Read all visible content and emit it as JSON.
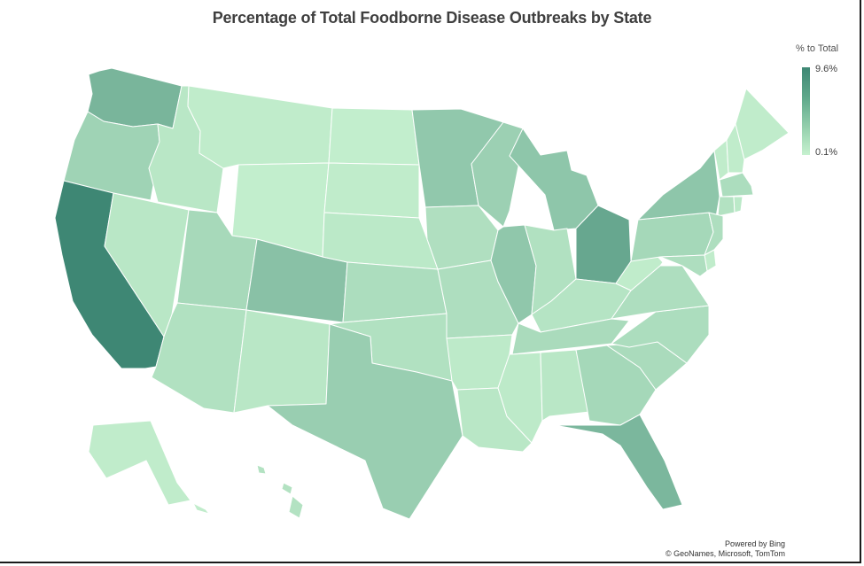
{
  "chart_data": {
    "type": "choropleth",
    "title": "Percentage of Total Foodborne Disease Outbreaks by State",
    "legend": {
      "title": "% to Total",
      "max_label": "9.6%",
      "min_label": "0.1%",
      "min": 0.1,
      "max": 9.6,
      "placement": "top-right"
    },
    "color_scale": {
      "low": "#c6f1cf",
      "high": "#3e8774"
    },
    "states": [
      {
        "name": "WA",
        "value": 4.8
      },
      {
        "name": "OR",
        "value": 2.1
      },
      {
        "name": "CA",
        "value": 9.6
      },
      {
        "name": "NV",
        "value": 0.6
      },
      {
        "name": "ID",
        "value": 0.6
      },
      {
        "name": "MT",
        "value": 0.3
      },
      {
        "name": "WY",
        "value": 0.2
      },
      {
        "name": "UT",
        "value": 1.6
      },
      {
        "name": "AZ",
        "value": 1.0
      },
      {
        "name": "CO",
        "value": 3.6
      },
      {
        "name": "NM",
        "value": 0.6
      },
      {
        "name": "ND",
        "value": 0.2
      },
      {
        "name": "SD",
        "value": 0.3
      },
      {
        "name": "NE",
        "value": 0.5
      },
      {
        "name": "KS",
        "value": 1.3
      },
      {
        "name": "OK",
        "value": 1.0
      },
      {
        "name": "TX",
        "value": 2.5
      },
      {
        "name": "MN",
        "value": 3.0
      },
      {
        "name": "IA",
        "value": 1.1
      },
      {
        "name": "MO",
        "value": 1.2
      },
      {
        "name": "AR",
        "value": 0.4
      },
      {
        "name": "LA",
        "value": 0.6
      },
      {
        "name": "WI",
        "value": 2.3
      },
      {
        "name": "IL",
        "value": 3.1
      },
      {
        "name": "MI",
        "value": 3.2
      },
      {
        "name": "IN",
        "value": 1.0
      },
      {
        "name": "OH",
        "value": 6.2
      },
      {
        "name": "KY",
        "value": 0.8
      },
      {
        "name": "TN",
        "value": 1.4
      },
      {
        "name": "MS",
        "value": 0.4
      },
      {
        "name": "AL",
        "value": 0.6
      },
      {
        "name": "GA",
        "value": 1.7
      },
      {
        "name": "FL",
        "value": 4.6
      },
      {
        "name": "SC",
        "value": 1.4
      },
      {
        "name": "NC",
        "value": 1.3
      },
      {
        "name": "VA",
        "value": 1.2
      },
      {
        "name": "WV",
        "value": 0.3
      },
      {
        "name": "PA",
        "value": 1.7
      },
      {
        "name": "NY",
        "value": 3.2
      },
      {
        "name": "VT",
        "value": 0.3
      },
      {
        "name": "NH",
        "value": 0.3
      },
      {
        "name": "ME",
        "value": 0.3
      },
      {
        "name": "MA",
        "value": 1.3
      },
      {
        "name": "CT",
        "value": 0.9
      },
      {
        "name": "RI",
        "value": 0.5
      },
      {
        "name": "NJ",
        "value": 1.2
      },
      {
        "name": "DE",
        "value": 0.3
      },
      {
        "name": "MD",
        "value": 1.2
      },
      {
        "name": "AK",
        "value": 0.3
      },
      {
        "name": "HI",
        "value": 0.9
      }
    ]
  },
  "attribution": {
    "line1": "Powered by Bing",
    "line2": "© GeoNames, Microsoft, TomTom"
  }
}
